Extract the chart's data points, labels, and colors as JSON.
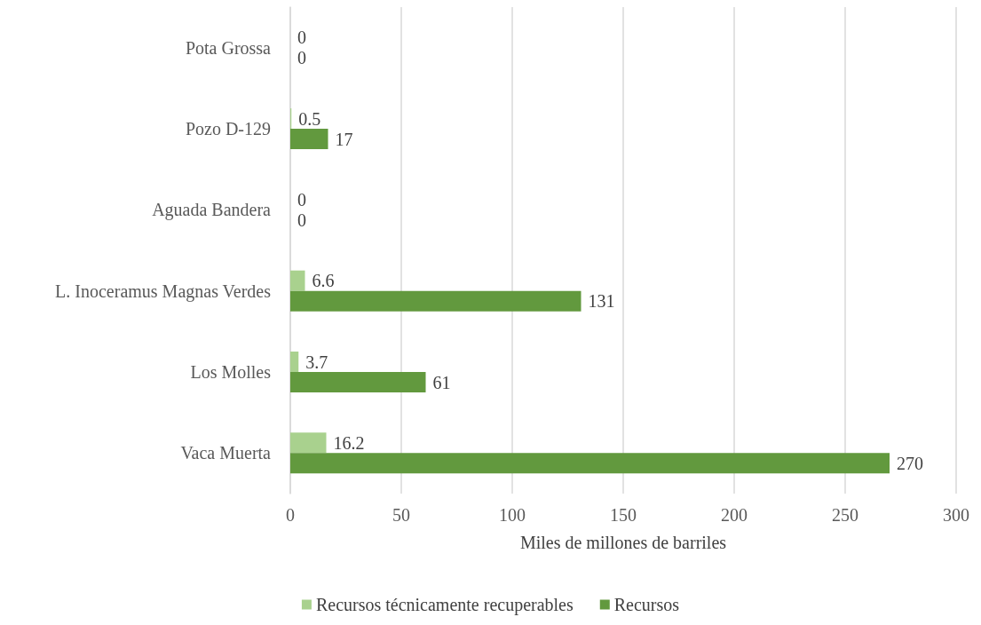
{
  "chart_data": {
    "type": "bar",
    "orientation": "horizontal",
    "xlabel": "Miles de millones de barriles",
    "categories": [
      "Pota Grossa",
      "Pozo D-129",
      "Aguada Bandera",
      "L. Inoceramus Magnas Verdes",
      "Los Molles",
      "Vaca Muerta"
    ],
    "series": [
      {
        "name": "Recursos técnicamente recuperables",
        "color": "#a9d18e",
        "values": [
          0,
          0.5,
          0,
          6.6,
          3.7,
          16.2
        ]
      },
      {
        "name": "Recursos",
        "color": "#62993e",
        "values": [
          0,
          17,
          0,
          131,
          61,
          270
        ]
      }
    ],
    "xlim": [
      0,
      300
    ],
    "xticks": [
      0,
      50,
      100,
      150,
      200,
      250,
      300
    ],
    "grid": "x",
    "legend": "bottom",
    "data_labels": true
  }
}
